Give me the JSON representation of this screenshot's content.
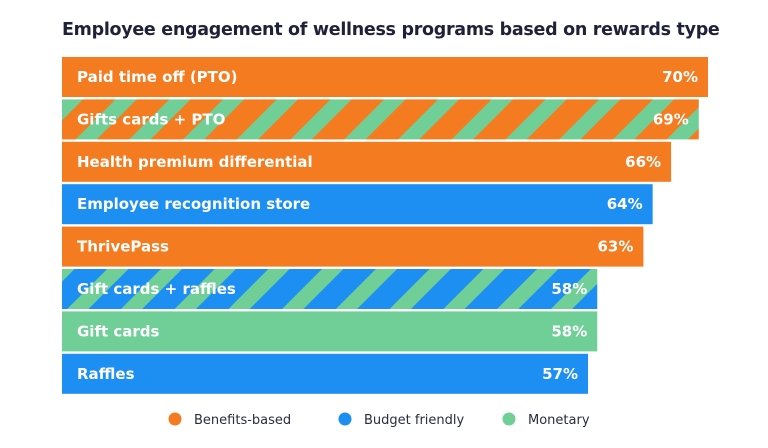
{
  "chart_data": {
    "type": "bar",
    "orientation": "horizontal",
    "title": "Employee engagement of wellness programs based on rewards type",
    "categories": [
      "Paid time off (PTO)",
      "Gifts cards + PTO",
      "Health premium differential",
      "Employee recognition store",
      "ThrivePass",
      "Gift cards + raffles",
      "Gift cards",
      "Raffles"
    ],
    "values": [
      70,
      69,
      66,
      64,
      63,
      58,
      58,
      57
    ],
    "value_labels": [
      "70%",
      "69%",
      "66%",
      "64%",
      "63%",
      "58%",
      "58%",
      "57%"
    ],
    "bar_types": [
      [
        "benefits"
      ],
      [
        "benefits",
        "monetary"
      ],
      [
        "benefits"
      ],
      [
        "budget"
      ],
      [
        "benefits"
      ],
      [
        "budget",
        "monetary"
      ],
      [
        "monetary"
      ],
      [
        "budget"
      ]
    ],
    "unit": "%",
    "xlim": [
      0,
      70
    ],
    "grid": false,
    "legend_placement": "bottom",
    "legend": [
      {
        "key": "benefits",
        "label": "Benefits-based",
        "color": "#F47B20"
      },
      {
        "key": "budget",
        "label": "Budget friendly",
        "color": "#1E8FF2"
      },
      {
        "key": "monetary",
        "label": "Monetary",
        "color": "#6FCF97"
      }
    ]
  }
}
